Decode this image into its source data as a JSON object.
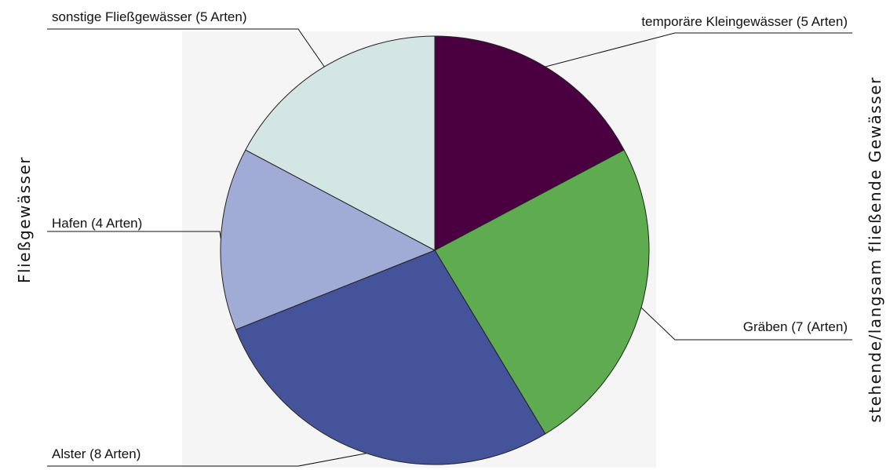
{
  "chart_data": {
    "type": "pie",
    "categories": [
      "temporäre Kleingewässer (5 Arten)",
      "Gräben (7 (Arten)",
      "Alster (8 Arten)",
      "Hafen (4 Arten)",
      "sonstige Fließgewässer (5 Arten)"
    ],
    "values": [
      5,
      7,
      8,
      4,
      5
    ],
    "colors": [
      "#4a0040",
      "#5fab4f",
      "#45549a",
      "#a0acd6",
      "#d3e6e3"
    ],
    "group_labels": {
      "left": "Fließgewässer",
      "right": "stehende/langsam fließende Gewässer"
    }
  }
}
